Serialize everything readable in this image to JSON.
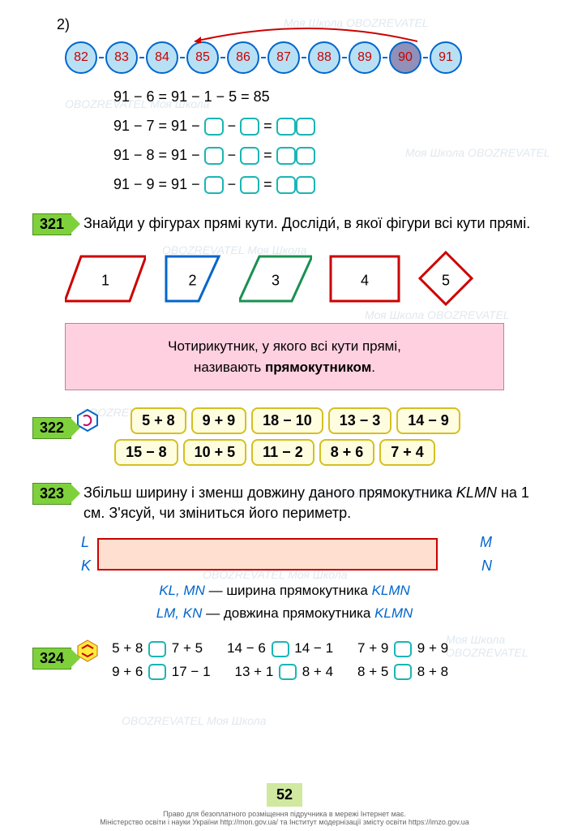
{
  "section_number": "2)",
  "number_line": {
    "values": [
      "82",
      "83",
      "84",
      "85",
      "86",
      "87",
      "88",
      "89",
      "90",
      "91"
    ],
    "highlight_index": 8,
    "arrow_color": "#cc0000"
  },
  "equations": [
    {
      "text": "91 − 6 = 91 − 1 − 5 = 85",
      "blanks": []
    },
    {
      "prefix": "91 − 7 = 91 − ",
      "pattern": "B − B = BB"
    },
    {
      "prefix": "91 − 8 = 91 − ",
      "pattern": "B − B = BB"
    },
    {
      "prefix": "91 − 9 = 91 − ",
      "pattern": "B − B = BB"
    }
  ],
  "task321": {
    "num": "321",
    "text": "Знайди у фігурах прямі кути. Досліди́, в якої фігури всі кути прямі.",
    "shapes": [
      {
        "n": "1",
        "color": "#cc0000",
        "type": "parallelogram"
      },
      {
        "n": "2",
        "color": "#0066cc",
        "type": "right-trapezoid"
      },
      {
        "n": "3",
        "color": "#1a9050",
        "type": "trapezoid"
      },
      {
        "n": "4",
        "color": "#cc0000",
        "type": "rectangle"
      },
      {
        "n": "5",
        "color": "#cc0000",
        "type": "diamond"
      }
    ]
  },
  "definition": {
    "line1": "Чотирикутник, у якого всі кути прямі,",
    "line2_prefix": "називають ",
    "line2_bold": "прямокутником",
    "line2_suffix": "."
  },
  "task322": {
    "num": "322",
    "row1": [
      "5 + 8",
      "9 + 9",
      "18 − 10",
      "13 − 3",
      "14 − 9"
    ],
    "row2": [
      "15 − 8",
      "10 + 5",
      "11 − 2",
      "8 + 6",
      "7 + 4"
    ]
  },
  "task323": {
    "num": "323",
    "text": "Збільш ширину і зменш довжину даного прямокутника KLMN на 1 см. З'ясуй, чи зміниться його периметр.",
    "labels": {
      "L": "L",
      "M": "M",
      "K": "K",
      "N": "N"
    },
    "info1_part1": "KL, MN",
    "info1_part2": " — ширина прямокутника ",
    "info1_part3": "KLMN",
    "info2_part1": "LM, KN",
    "info2_part2": " — довжина прямокутника ",
    "info2_part3": "KLMN"
  },
  "task324": {
    "num": "324",
    "row1": [
      [
        "5 + 8",
        "7 + 5"
      ],
      [
        "14 − 6",
        "14 − 1"
      ],
      [
        "7 + 9",
        "9 + 9"
      ]
    ],
    "row2": [
      [
        "9 + 6",
        "17 − 1"
      ],
      [
        "13 + 1",
        "8 + 4"
      ],
      [
        "8 + 5",
        "8 + 8"
      ]
    ]
  },
  "page_number": "52",
  "footer": {
    "line1": "Право для безоплатного розміщення підручника в мережі Інтернет має.",
    "line2": "Міністерство освіти і науки України http://mon.gov.ua/ та Інститут модернізації змісту освіти https://imzo.gov.ua"
  },
  "watermarks": [
    "Моя Школа",
    "OBOZREVATEL"
  ]
}
